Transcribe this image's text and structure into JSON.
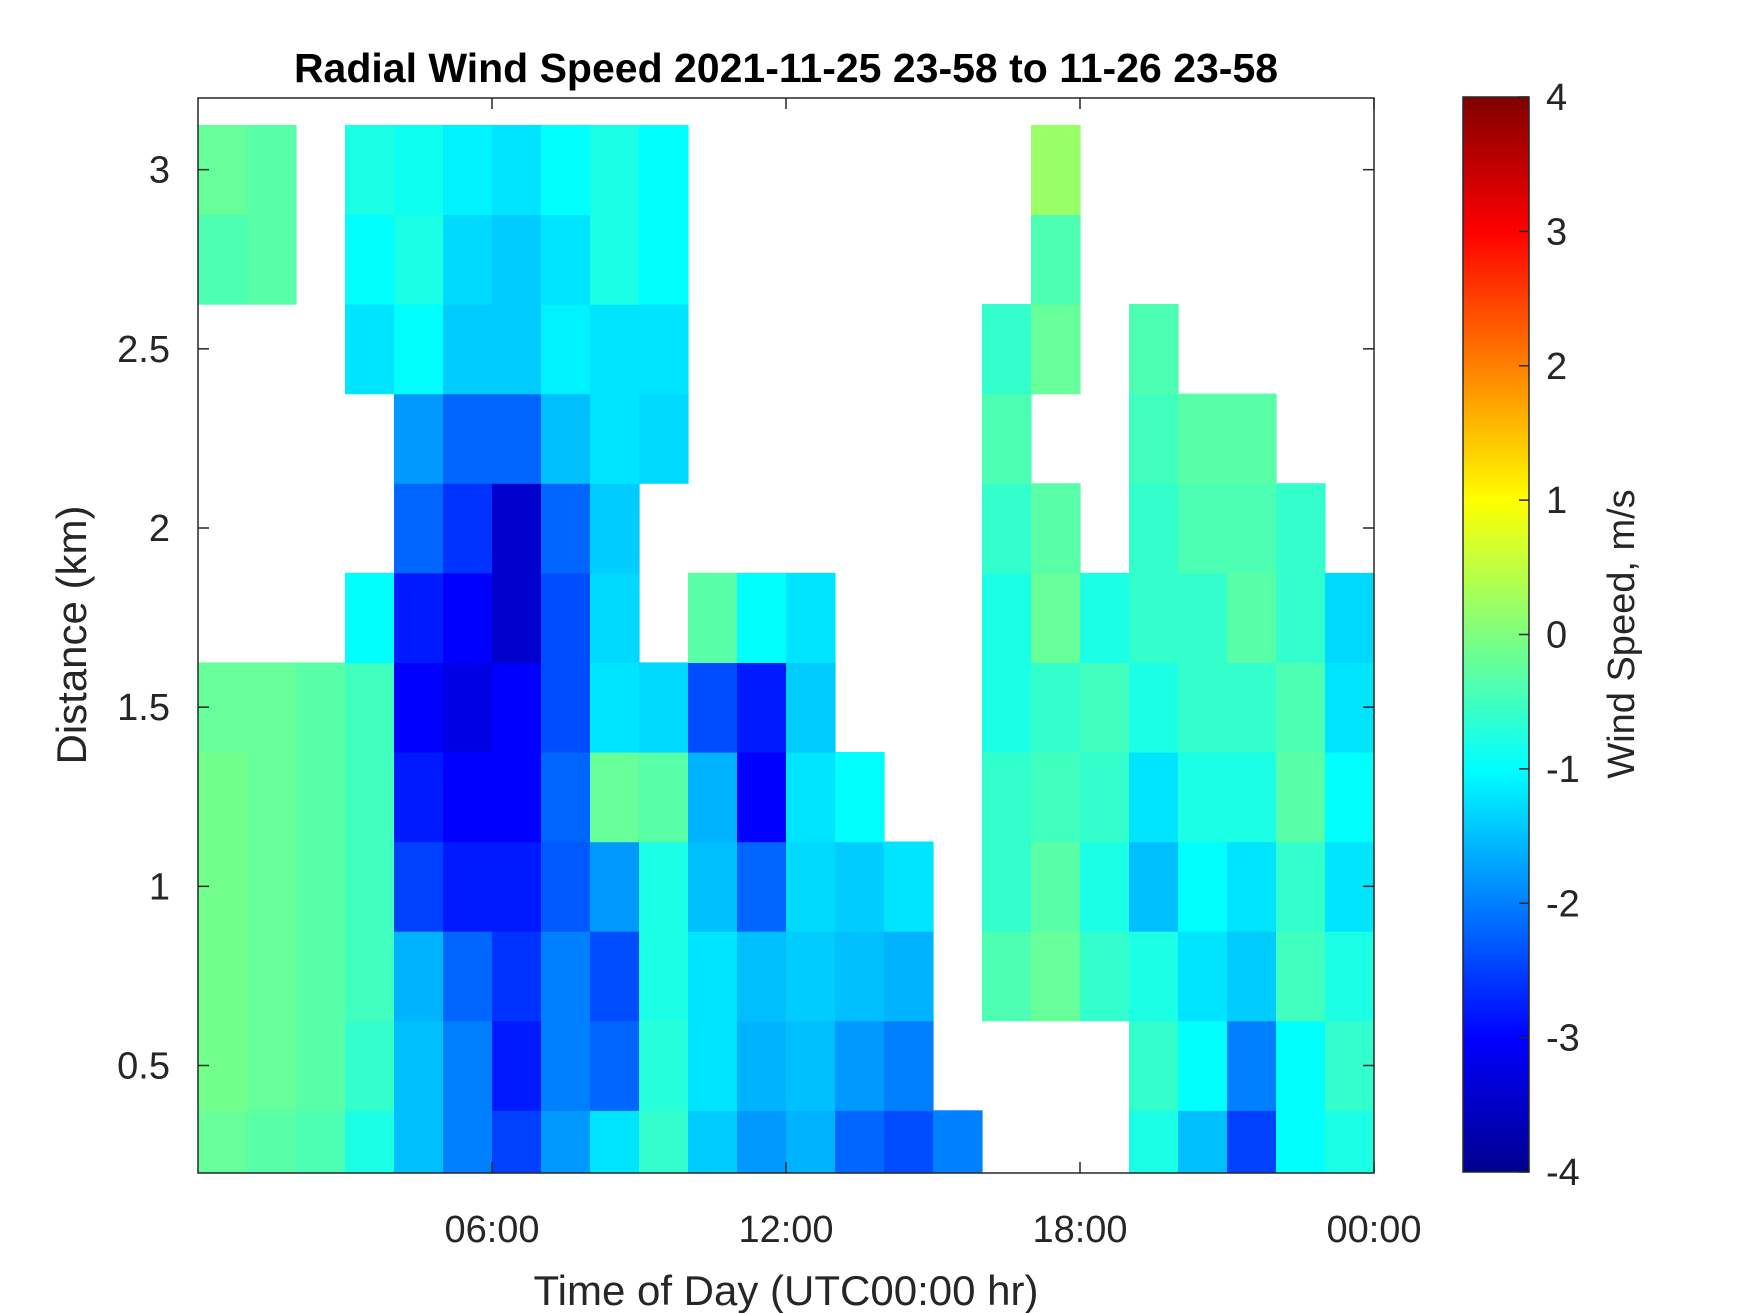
{
  "chart_data": {
    "type": "heatmap",
    "title": "Radial Wind Speed 2021-11-25 23-58 to 11-26 23-58",
    "xlabel": "Time of Day (UTC00:00 hr)",
    "ylabel": "Distance (km)",
    "xlim": [
      0,
      24
    ],
    "ylim": [
      0.2,
      3.2
    ],
    "x_ticks": [
      {
        "value": 6,
        "label": "06:00"
      },
      {
        "value": 12,
        "label": "12:00"
      },
      {
        "value": 18,
        "label": "18:00"
      },
      {
        "value": 24,
        "label": "00:00"
      }
    ],
    "y_ticks": [
      {
        "value": 0.5,
        "label": "0.5"
      },
      {
        "value": 1,
        "label": "1"
      },
      {
        "value": 1.5,
        "label": "1.5"
      },
      {
        "value": 2,
        "label": "2"
      },
      {
        "value": 2.5,
        "label": "2.5"
      },
      {
        "value": 3,
        "label": "3"
      }
    ],
    "colorbar": {
      "label": "Wind Speed, m/s",
      "colormap": "jet",
      "range": [
        -4,
        4
      ],
      "ticks": [
        "-4",
        "-3",
        "-2",
        "-1",
        "0",
        "1",
        "2",
        "3",
        "4"
      ]
    },
    "time_hours": [
      0,
      1,
      2,
      3,
      4,
      5,
      6,
      7,
      8,
      9,
      10,
      11,
      12,
      13,
      14,
      15,
      16,
      17,
      18,
      19,
      20,
      21,
      22,
      23
    ],
    "distance_km": [
      0.25,
      0.5,
      0.75,
      1.0,
      1.25,
      1.5,
      1.75,
      2.0,
      2.25,
      2.5,
      2.75,
      3.0
    ],
    "values_ms": [
      [
        -0.2,
        -0.3,
        -0.4,
        -0.8,
        -1.5,
        -2.0,
        -2.5,
        -1.8,
        -1.2,
        -0.6,
        -1.4,
        -1.8,
        -1.6,
        -2.2,
        -2.4,
        -2.0,
        null,
        null,
        null,
        -0.8,
        -1.5,
        -2.5,
        -1.0,
        -0.8
      ],
      [
        -0.1,
        -0.2,
        -0.3,
        -0.6,
        -1.5,
        -2.0,
        -2.8,
        -2.0,
        -2.2,
        -0.7,
        -1.2,
        -1.6,
        -1.5,
        -1.8,
        -2.0,
        null,
        null,
        null,
        null,
        -0.6,
        -1.0,
        -2.0,
        -1.0,
        -0.6
      ],
      [
        -0.1,
        -0.2,
        -0.3,
        -0.5,
        -1.6,
        -2.2,
        -2.6,
        -2.0,
        -2.4,
        -0.8,
        -1.2,
        -1.5,
        -1.4,
        -1.5,
        -1.6,
        null,
        -0.4,
        -0.2,
        -0.6,
        -0.8,
        -1.2,
        -1.4,
        -0.5,
        -0.8
      ],
      [
        -0.1,
        -0.2,
        -0.3,
        -0.5,
        -2.5,
        -2.8,
        -2.8,
        -2.3,
        -1.8,
        -0.8,
        -1.5,
        -2.2,
        -1.3,
        -1.4,
        -1.2,
        null,
        -0.6,
        -0.3,
        -0.8,
        -1.5,
        -1.0,
        -1.2,
        -0.6,
        -1.2
      ],
      [
        -0.1,
        -0.2,
        -0.3,
        -0.5,
        -2.8,
        -3.0,
        -3.0,
        -2.2,
        -0.2,
        -0.3,
        -1.6,
        -3.0,
        -1.2,
        -1.0,
        null,
        null,
        -0.6,
        -0.5,
        -0.6,
        -1.2,
        -0.8,
        -0.8,
        -0.3,
        -1.0
      ],
      [
        -0.2,
        -0.2,
        -0.3,
        -0.5,
        -3.0,
        -3.2,
        -3.0,
        -2.4,
        -1.2,
        -1.3,
        -2.4,
        -2.8,
        -1.4,
        null,
        null,
        null,
        -0.8,
        -0.6,
        -0.5,
        -0.8,
        -0.6,
        -0.6,
        -0.4,
        -1.2
      ],
      [
        null,
        null,
        null,
        -1.0,
        -2.8,
        -3.0,
        -3.4,
        -2.4,
        -1.3,
        null,
        -0.3,
        -1.0,
        -1.2,
        null,
        null,
        null,
        -0.8,
        -0.2,
        -0.8,
        -0.6,
        -0.6,
        -0.3,
        -0.6,
        -1.3
      ],
      [
        null,
        null,
        null,
        null,
        -2.2,
        -2.6,
        -3.4,
        -2.2,
        -1.4,
        null,
        null,
        null,
        null,
        null,
        null,
        null,
        -0.6,
        -0.3,
        null,
        -0.6,
        -0.4,
        -0.4,
        -0.6,
        null
      ],
      [
        null,
        null,
        null,
        null,
        -1.8,
        -2.2,
        -2.2,
        -1.5,
        -1.2,
        -1.3,
        null,
        null,
        null,
        null,
        null,
        null,
        -0.4,
        null,
        null,
        -0.5,
        -0.3,
        -0.3,
        null,
        null
      ],
      [
        null,
        null,
        null,
        -1.2,
        -1.0,
        -1.4,
        -1.4,
        -1.1,
        -1.2,
        -1.2,
        null,
        null,
        null,
        null,
        null,
        null,
        -0.6,
        -0.2,
        null,
        -0.4,
        null,
        null,
        null,
        null
      ],
      [
        -0.4,
        -0.3,
        null,
        -1.0,
        -0.8,
        -1.3,
        -1.4,
        -1.2,
        -0.8,
        -1.0,
        null,
        null,
        null,
        null,
        null,
        null,
        null,
        -0.4,
        null,
        null,
        null,
        null,
        null,
        null
      ],
      [
        -0.2,
        -0.3,
        null,
        -0.8,
        -0.9,
        -1.1,
        -1.2,
        -1.0,
        -0.8,
        -1.0,
        null,
        null,
        null,
        null,
        null,
        null,
        null,
        0.2,
        null,
        null,
        null,
        null,
        null,
        null
      ]
    ]
  }
}
